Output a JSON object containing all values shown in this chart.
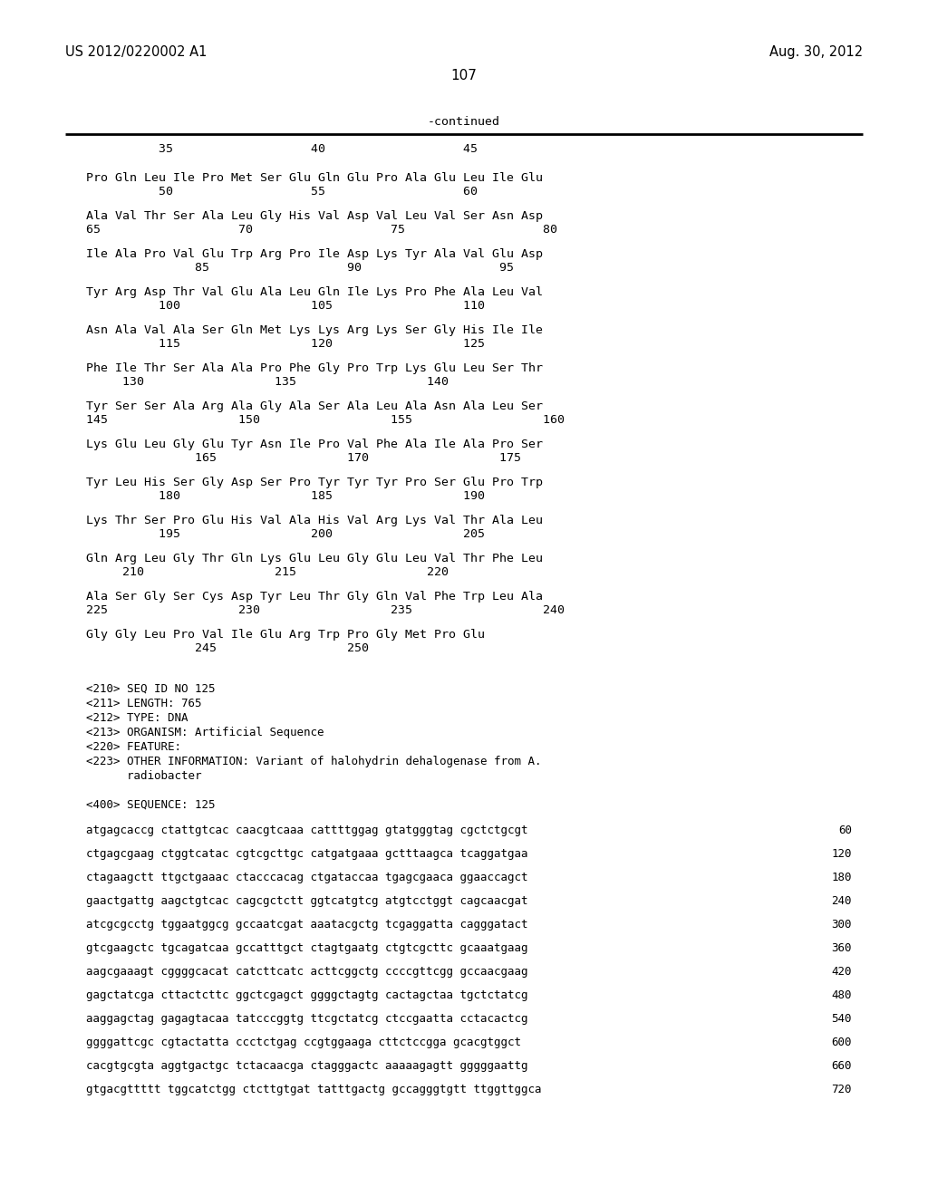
{
  "header_left": "US 2012/0220002 A1",
  "header_right": "Aug. 30, 2012",
  "page_number": "107",
  "continued_label": "-continued",
  "seq_num_row": "          35                   40                   45",
  "amino_acid_lines": [
    [
      "Pro Gln Leu Ile Pro Met Ser Glu Gln Glu Pro Ala Glu Leu Ile Glu",
      "          50                   55                   60"
    ],
    [
      "Ala Val Thr Ser Ala Leu Gly His Val Asp Val Leu Val Ser Asn Asp",
      "65                   70                   75                   80"
    ],
    [
      "Ile Ala Pro Val Glu Trp Arg Pro Ile Asp Lys Tyr Ala Val Glu Asp",
      "               85                   90                   95"
    ],
    [
      "Tyr Arg Asp Thr Val Glu Ala Leu Gln Ile Lys Pro Phe Ala Leu Val",
      "          100                  105                  110"
    ],
    [
      "Asn Ala Val Ala Ser Gln Met Lys Lys Arg Lys Ser Gly His Ile Ile",
      "          115                  120                  125"
    ],
    [
      "Phe Ile Thr Ser Ala Ala Pro Phe Gly Pro Trp Lys Glu Leu Ser Thr",
      "     130                  135                  140"
    ],
    [
      "Tyr Ser Ser Ala Arg Ala Gly Ala Ser Ala Leu Ala Asn Ala Leu Ser",
      "145                  150                  155                  160"
    ],
    [
      "Lys Glu Leu Gly Glu Tyr Asn Ile Pro Val Phe Ala Ile Ala Pro Ser",
      "               165                  170                  175"
    ],
    [
      "Tyr Leu His Ser Gly Asp Ser Pro Tyr Tyr Tyr Pro Ser Glu Pro Trp",
      "          180                  185                  190"
    ],
    [
      "Lys Thr Ser Pro Glu His Val Ala His Val Arg Lys Val Thr Ala Leu",
      "          195                  200                  205"
    ],
    [
      "Gln Arg Leu Gly Thr Gln Lys Glu Leu Gly Glu Leu Val Thr Phe Leu",
      "     210                  215                  220"
    ],
    [
      "Ala Ser Gly Ser Cys Asp Tyr Leu Thr Gly Gln Val Phe Trp Leu Ala",
      "225                  230                  235                  240"
    ],
    [
      "Gly Gly Leu Pro Val Ile Glu Arg Trp Pro Gly Met Pro Glu",
      "               245                  250"
    ]
  ],
  "metadata_lines": [
    "<210> SEQ ID NO 125",
    "<211> LENGTH: 765",
    "<212> TYPE: DNA",
    "<213> ORGANISM: Artificial Sequence",
    "<220> FEATURE:",
    "<223> OTHER INFORMATION: Variant of halohydrin dehalogenase from A.",
    "      radiobacter",
    "",
    "<400> SEQUENCE: 125"
  ],
  "dna_lines": [
    [
      "atgagcaccg ctattgtcac caacgtcaaa cattttggag gtatgggtag cgctctgcgt",
      "60"
    ],
    [
      "ctgagcgaag ctggtcatac cgtcgcttgc catgatgaaa gctttaagca tcaggatgaa",
      "120"
    ],
    [
      "ctagaagctt ttgctgaaac ctacccacag ctgataccaa tgagcgaaca ggaaccagct",
      "180"
    ],
    [
      "gaactgattg aagctgtcac cagcgctctt ggtcatgtcg atgtcctggt cagcaacgat",
      "240"
    ],
    [
      "atcgcgcctg tggaatggcg gccaatcgat aaatacgctg tcgaggatta cagggatact",
      "300"
    ],
    [
      "gtcgaagctc tgcagatcaa gccatttgct ctagtgaatg ctgtcgcttc gcaaatgaag",
      "360"
    ],
    [
      "aagcgaaagt cggggcacat catcttcatc acttcggctg ccccgttcgg gccaacgaag",
      "420"
    ],
    [
      "gagctatcga cttactcttc ggctcgagct ggggctagtg cactagctaa tgctctatcg",
      "480"
    ],
    [
      "aaggagctag gagagtacaa tatcccggtg ttcgctatcg ctccgaatta cctacactcg",
      "540"
    ],
    [
      "ggggattcgc cgtactatta ccctctgag ccgtggaaga cttctccgga gcacgtggct",
      "600"
    ],
    [
      "cacgtgcgta aggtgactgc tctacaacga ctagggactc aaaaagagtt gggggaattg",
      "660"
    ],
    [
      "gtgacgttttt tggcatctgg ctcttgtgat tatttgactg gccagggtgtt ttggttggca",
      "720"
    ]
  ],
  "bg_color": "#ffffff",
  "text_color": "#000000"
}
